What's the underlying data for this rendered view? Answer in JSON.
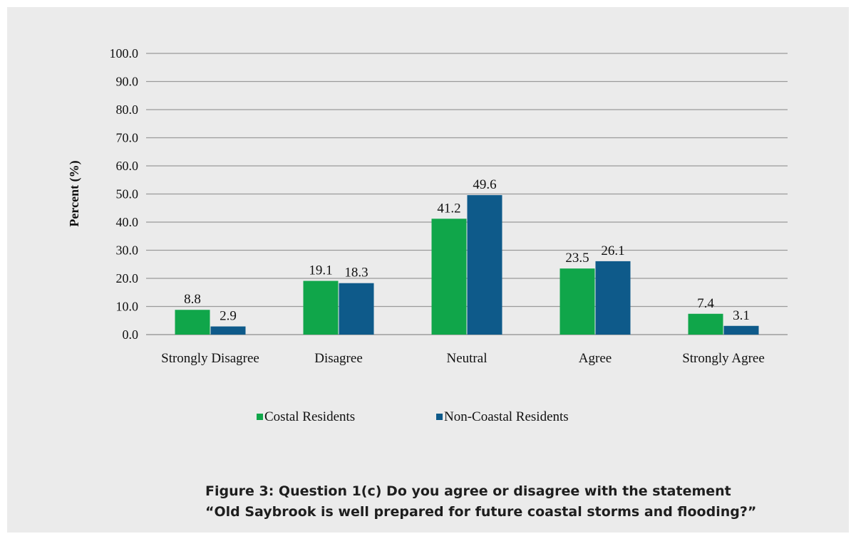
{
  "chart_data": {
    "type": "bar",
    "categories": [
      "Strongly Disagree",
      "Disagree",
      "Neutral",
      "Agree",
      "Strongly Agree"
    ],
    "series": [
      {
        "name": "Costal Residents",
        "color": "#10a64a",
        "values": [
          8.8,
          19.1,
          41.2,
          23.5,
          7.4
        ]
      },
      {
        "name": "Non-Coastal Residents",
        "color": "#0e5a8a",
        "values": [
          2.9,
          18.3,
          49.6,
          26.1,
          3.1
        ]
      }
    ],
    "ylabel": "Percent (%)",
    "ylim": [
      0,
      100
    ],
    "yticks": [
      "0.0",
      "10.0",
      "20.0",
      "30.0",
      "40.0",
      "50.0",
      "60.0",
      "70.0",
      "80.0",
      "90.0",
      "100.0"
    ],
    "grid": true,
    "legend": "bottom"
  },
  "caption": {
    "line1": "Figure 3:  Question 1(c)  Do you agree or disagree with the statement",
    "line2": "“Old Saybrook is well prepared for future coastal storms and flooding?”"
  }
}
